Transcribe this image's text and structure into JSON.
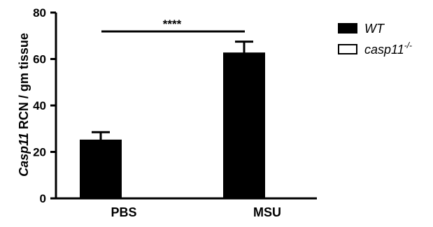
{
  "chart_data": {
    "type": "bar",
    "categories": [
      "PBS",
      "MSU"
    ],
    "series": [
      {
        "name": "WT",
        "values": [
          25,
          62.5
        ],
        "errors": [
          3.5,
          5
        ],
        "color": "#000000"
      },
      {
        "name": "casp11-/-",
        "values": [
          0,
          0
        ],
        "errors": [
          0,
          0
        ],
        "color": "#ffffff"
      }
    ],
    "ylabel": {
      "italic": "Casp11",
      "rest": " RCN / gm tissue"
    },
    "ylim": [
      0,
      80
    ],
    "yticks": [
      0,
      20,
      40,
      60,
      80
    ],
    "legend": {
      "placement": "top-right",
      "entries": [
        {
          "text": "WT",
          "superscript": ""
        },
        {
          "text": "casp11",
          "superscript": "-/-"
        }
      ]
    },
    "annotation": {
      "text": "****",
      "between": [
        "PBS",
        "MSU"
      ]
    },
    "grid": false
  }
}
